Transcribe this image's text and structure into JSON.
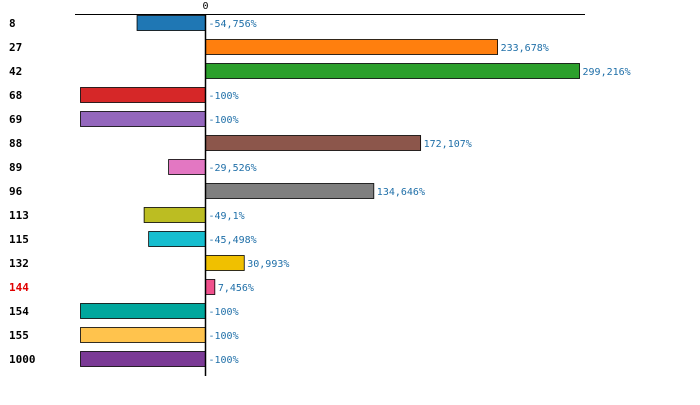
{
  "chart_data": {
    "type": "bar",
    "orientation": "horizontal",
    "title": "",
    "xlabel": "",
    "ylabel": "",
    "zero_label": "0",
    "xlim": [
      -100,
      299.216
    ],
    "grid": false,
    "categories": [
      "8",
      "27",
      "42",
      "68",
      "69",
      "88",
      "89",
      "96",
      "113",
      "115",
      "132",
      "144",
      "154",
      "155",
      "1000"
    ],
    "values": [
      -54.756,
      233.678,
      299.216,
      -100,
      -100,
      172.107,
      -29.526,
      134.646,
      -49.1,
      -45.498,
      30.993,
      7.456,
      -100,
      -100,
      -100
    ],
    "value_labels": [
      "-54,756%",
      "233,678%",
      "299,216%",
      "-100%",
      "-100%",
      "172,107%",
      "-29,526%",
      "134,646%",
      "-49,1%",
      "-45,498%",
      "30,993%",
      "7,456%",
      "-100%",
      "-100%",
      "-100%"
    ],
    "colors": [
      "#1f77b4",
      "#ff7f0e",
      "#2ca02c",
      "#d62728",
      "#9467bd",
      "#8c564b",
      "#e377c2",
      "#7f7f7f",
      "#bcbd22",
      "#17becf",
      "#f0c000",
      "#f0508c",
      "#00a79d",
      "#ffc34d",
      "#7b3a96"
    ],
    "label_colors": [
      "#000000",
      "#000000",
      "#000000",
      "#000000",
      "#000000",
      "#000000",
      "#000000",
      "#000000",
      "#000000",
      "#000000",
      "#000000",
      "#e00000",
      "#000000",
      "#000000",
      "#000000"
    ],
    "value_label_color": "#1f6fa8"
  }
}
